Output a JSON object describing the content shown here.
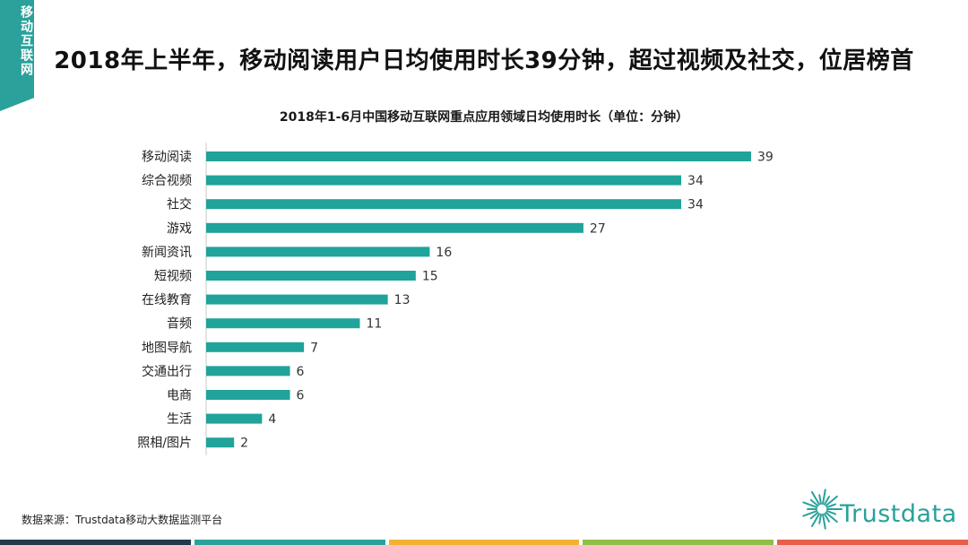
{
  "corner_tag": "移动互联网",
  "main_title": "2018年上半年，移动阅读用户日均使用时长39分钟，超过视频及社交，位居榜首",
  "source": "数据来源：Trustdata移动大数据监测平台",
  "logo": {
    "text": "Trustdata",
    "color": "#2aa19a"
  },
  "colors": {
    "accent": "#2aa19a",
    "bar": "#1fa39a",
    "stripes": [
      "#243a4a",
      "#2aa19a",
      "#f2b233",
      "#8fbf48",
      "#e8604c"
    ]
  },
  "chart_data": {
    "type": "bar",
    "orientation": "horizontal",
    "title": "2018年1-6月中国移动互联网重点应用领域日均使用时长（单位：分钟）",
    "xlabel": "",
    "ylabel": "",
    "xlim": [
      0,
      39
    ],
    "categories": [
      "移动阅读",
      "综合视频",
      "社交",
      "游戏",
      "新闻资讯",
      "短视频",
      "在线教育",
      "音频",
      "地图导航",
      "交通出行",
      "电商",
      "生活",
      "照相/图片"
    ],
    "values": [
      39,
      34,
      34,
      27,
      16,
      15,
      13,
      11,
      7,
      6,
      6,
      4,
      2
    ],
    "grid": false,
    "legend": "none"
  }
}
